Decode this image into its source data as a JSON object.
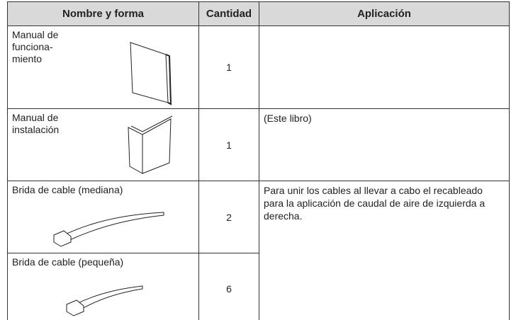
{
  "table": {
    "header": [
      "Nombre y forma",
      "Cantidad",
      "Aplicación"
    ],
    "rows": [
      {
        "name": "Manual de\nfunciona-\nmiento",
        "quantity": "1",
        "application": ""
      },
      {
        "name": "Manual de\ninstalación",
        "quantity": "1",
        "application": "(Este libro)"
      },
      {
        "name": "Brida de cable (mediana)",
        "quantity": "2",
        "application": "Para unir los cables al llevar a cabo el recableado para la aplicación de caudal de aire de izquierda a derecha."
      },
      {
        "name": "Brida de cable (pequeña)",
        "quantity": "6"
      }
    ]
  }
}
